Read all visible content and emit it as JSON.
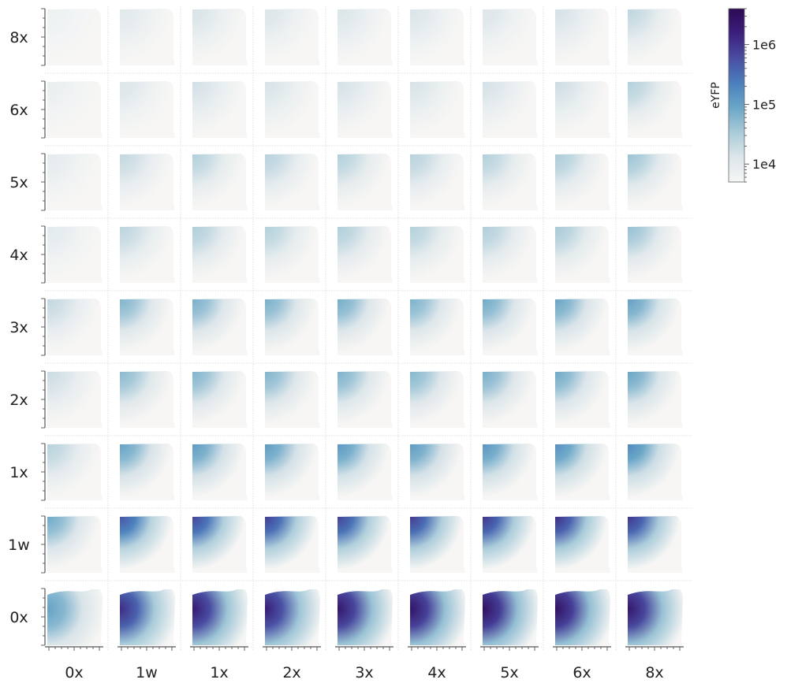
{
  "chart_data": {
    "type": "heatmap",
    "title": "",
    "row_labels": [
      "8x",
      "6x",
      "5x",
      "4x",
      "3x",
      "2x",
      "1x",
      "1w",
      "0x"
    ],
    "column_labels": [
      "0x",
      "1w",
      "1x",
      "2x",
      "3x",
      "4x",
      "5x",
      "6x",
      "8x"
    ],
    "relative_intensity": [
      [
        0.05,
        0.12,
        0.16,
        0.14,
        0.15,
        0.15,
        0.14,
        0.17,
        0.23
      ],
      [
        0.07,
        0.14,
        0.18,
        0.16,
        0.17,
        0.16,
        0.17,
        0.19,
        0.26
      ],
      [
        0.1,
        0.22,
        0.26,
        0.25,
        0.26,
        0.25,
        0.26,
        0.28,
        0.32
      ],
      [
        0.11,
        0.24,
        0.27,
        0.26,
        0.27,
        0.26,
        0.27,
        0.29,
        0.33
      ],
      [
        0.22,
        0.38,
        0.4,
        0.4,
        0.41,
        0.39,
        0.42,
        0.44,
        0.46
      ],
      [
        0.2,
        0.36,
        0.38,
        0.38,
        0.39,
        0.37,
        0.4,
        0.42,
        0.44
      ],
      [
        0.25,
        0.45,
        0.48,
        0.48,
        0.49,
        0.48,
        0.5,
        0.52,
        0.54
      ],
      [
        0.42,
        0.7,
        0.75,
        0.77,
        0.76,
        0.78,
        0.8,
        0.82,
        0.8
      ],
      [
        0.45,
        0.82,
        0.9,
        0.88,
        0.92,
        0.94,
        0.96,
        0.95,
        0.92
      ]
    ],
    "colorbar": {
      "label": "eYFP",
      "scale": "log",
      "ticks": [
        "1e4",
        "1e5",
        "1e6"
      ],
      "tick_values": [
        10000,
        100000,
        1000000
      ],
      "range": [
        5000,
        4000000
      ],
      "colors": [
        "#f5f6f6",
        "#dde6ea",
        "#a9cbd9",
        "#6aa7c7",
        "#4a7fbd",
        "#4a4ea3",
        "#3b1f7d",
        "#2d0a55"
      ]
    },
    "grid": true,
    "legend_position": "top-right"
  }
}
